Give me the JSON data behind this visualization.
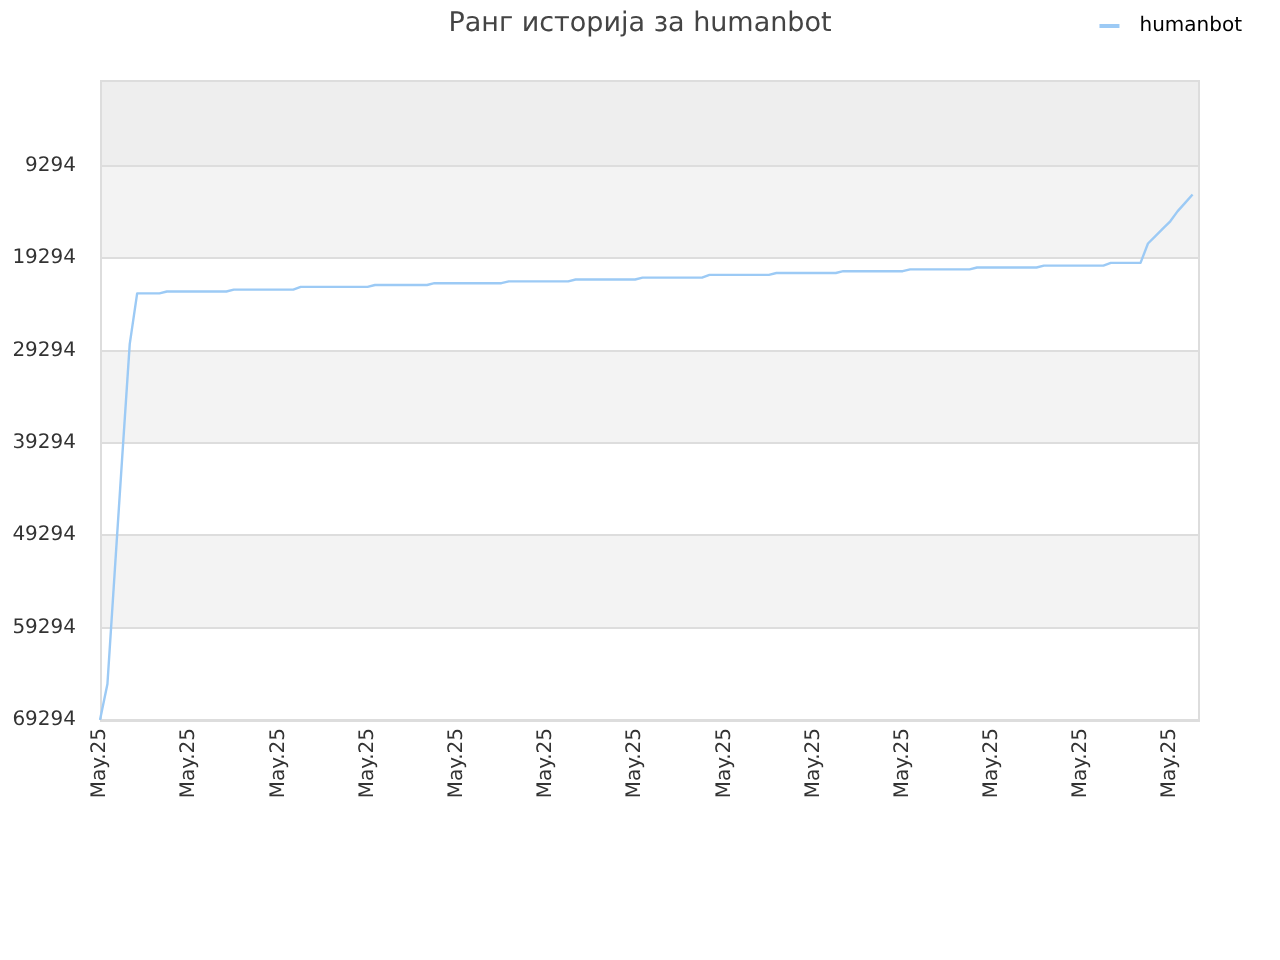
{
  "chart_data": {
    "type": "line",
    "title": "Ранг историја за humanbot",
    "categories": [
      "May.25",
      null,
      null,
      null,
      null,
      null,
      null,
      null,
      null,
      null,
      null,
      null,
      "May.25",
      null,
      null,
      null,
      null,
      null,
      null,
      null,
      null,
      null,
      null,
      null,
      "May.25",
      null,
      null,
      null,
      null,
      null,
      null,
      null,
      null,
      null,
      null,
      null,
      "May.25",
      null,
      null,
      null,
      null,
      null,
      null,
      null,
      null,
      null,
      null,
      null,
      "May.25",
      null,
      null,
      null,
      null,
      null,
      null,
      null,
      null,
      null,
      null,
      null,
      "May.25",
      null,
      null,
      null,
      null,
      null,
      null,
      null,
      null,
      null,
      null,
      null,
      "May.25",
      null,
      null,
      null,
      null,
      null,
      null,
      null,
      null,
      null,
      null,
      null,
      "May.25",
      null,
      null,
      null,
      null,
      null,
      null,
      null,
      null,
      null,
      null,
      null,
      "May.25",
      null,
      null,
      null,
      null,
      null,
      null,
      null,
      null,
      null,
      null,
      null,
      "May.25",
      null,
      null,
      null,
      null,
      null,
      null,
      null,
      null,
      null,
      null,
      null,
      "May.25",
      null,
      null,
      null,
      null,
      null,
      null,
      null,
      null,
      null,
      null,
      null,
      "May.25",
      null,
      null,
      null,
      null,
      null,
      null,
      null,
      null,
      null,
      null,
      null,
      "May.25",
      null,
      null,
      null,
      null
    ],
    "ylim": [
      69294,
      0
    ],
    "yticks": [
      9294,
      19294,
      29294,
      39294,
      49294,
      59294,
      69294
    ],
    "grid": "y",
    "legend": "top right",
    "bands": [
      {
        "axis": "y",
        "from": 9294,
        "to": 0,
        "color": "#eeeeee"
      }
    ],
    "series": [
      {
        "name": "humanbot",
        "color": "#9ccaf5",
        "values": [
          69294,
          65400,
          53000,
          40700,
          28600,
          23100,
          23100,
          23100,
          23100,
          22900,
          22900,
          22900,
          22900,
          22900,
          22900,
          22900,
          22900,
          22900,
          22700,
          22700,
          22700,
          22700,
          22700,
          22700,
          22700,
          22700,
          22700,
          22400,
          22400,
          22400,
          22400,
          22400,
          22400,
          22400,
          22400,
          22400,
          22400,
          22200,
          22200,
          22200,
          22200,
          22200,
          22200,
          22200,
          22200,
          22000,
          22000,
          22000,
          22000,
          22000,
          22000,
          22000,
          22000,
          22000,
          22000,
          21800,
          21800,
          21800,
          21800,
          21800,
          21800,
          21800,
          21800,
          21800,
          21600,
          21600,
          21600,
          21600,
          21600,
          21600,
          21600,
          21600,
          21600,
          21400,
          21400,
          21400,
          21400,
          21400,
          21400,
          21400,
          21400,
          21400,
          21100,
          21100,
          21100,
          21100,
          21100,
          21100,
          21100,
          21100,
          21100,
          20900,
          20900,
          20900,
          20900,
          20900,
          20900,
          20900,
          20900,
          20900,
          20700,
          20700,
          20700,
          20700,
          20700,
          20700,
          20700,
          20700,
          20700,
          20500,
          20500,
          20500,
          20500,
          20500,
          20500,
          20500,
          20500,
          20500,
          20300,
          20300,
          20300,
          20300,
          20300,
          20300,
          20300,
          20300,
          20300,
          20100,
          20100,
          20100,
          20100,
          20100,
          20100,
          20100,
          20100,
          20100,
          19800,
          19800,
          19800,
          19800,
          19800,
          17700,
          16900,
          16100,
          15300,
          14200,
          13300,
          12400,
          null
        ]
      }
    ]
  }
}
